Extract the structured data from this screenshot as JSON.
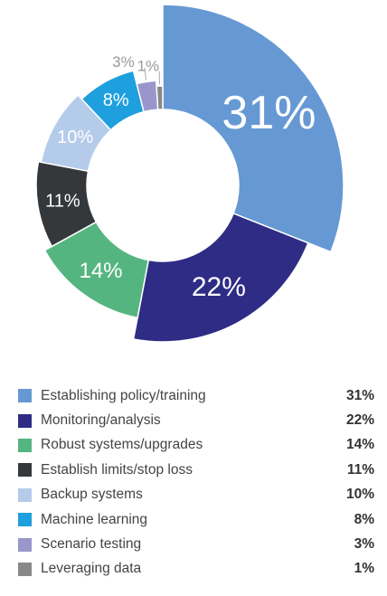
{
  "chart_data": {
    "type": "pie",
    "title": "",
    "slices": [
      {
        "label": "Establishing policy/training",
        "value": 31,
        "display": "31%",
        "color": "#6699d4"
      },
      {
        "label": "Monitoring/analysis",
        "value": 22,
        "display": "22%",
        "color": "#2e2c85"
      },
      {
        "label": "Robust systems/upgrades",
        "value": 14,
        "display": "14%",
        "color": "#55b581"
      },
      {
        "label": "Establish limits/stop loss",
        "value": 11,
        "display": "11%",
        "color": "#35383a"
      },
      {
        "label": "Backup systems",
        "value": 10,
        "display": "10%",
        "color": "#b5cbea"
      },
      {
        "label": "Machine learning",
        "value": 8,
        "display": "8%",
        "color": "#1e9fde"
      },
      {
        "label": "Scenario testing",
        "value": 3,
        "display": "3%",
        "color": "#9896cb"
      },
      {
        "label": "Leveraging data",
        "value": 1,
        "display": "1%",
        "color": "#888888"
      }
    ]
  }
}
